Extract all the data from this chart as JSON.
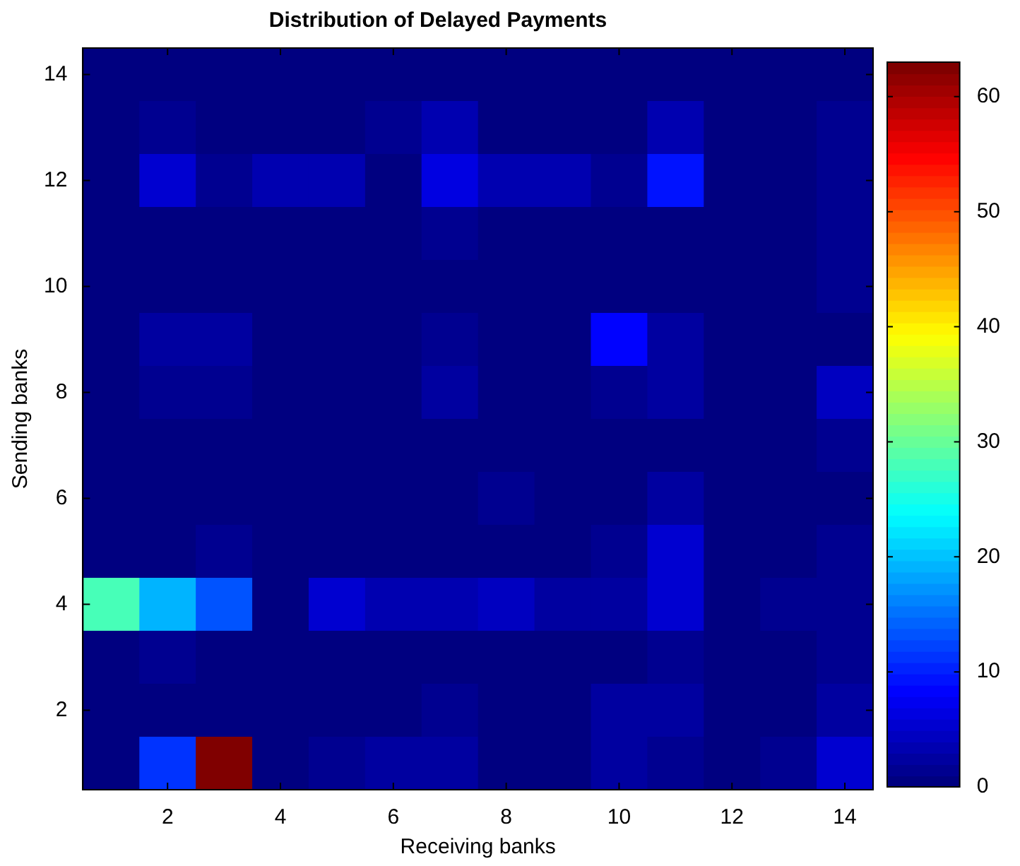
{
  "chart_data": {
    "type": "heatmap",
    "title": "Distribution of Delayed Payments",
    "xlabel": "Receiving banks",
    "ylabel": "Sending banks",
    "categories": [
      null,
      "2",
      null,
      "4",
      null,
      "6",
      null,
      "8",
      null,
      "10",
      null,
      "12",
      null,
      "14"
    ],
    "y_categories": [
      "14",
      null,
      "12",
      null,
      "10",
      null,
      "8",
      null,
      "6",
      null,
      "4",
      null,
      "2",
      null
    ],
    "cells": [
      [
        0,
        0,
        0,
        0,
        0,
        0,
        0,
        0,
        0,
        0,
        0,
        0,
        0,
        0
      ],
      [
        0,
        1,
        0,
        0,
        0,
        1,
        3,
        0,
        0,
        0,
        3,
        0,
        0,
        1
      ],
      [
        0,
        5,
        1,
        3,
        3,
        0,
        6,
        3,
        3,
        1,
        9,
        0,
        0,
        1
      ],
      [
        0,
        0,
        0,
        0,
        0,
        0,
        1,
        0,
        0,
        0,
        0,
        0,
        0,
        1
      ],
      [
        0,
        0,
        0,
        0,
        0,
        0,
        0,
        0,
        0,
        0,
        0,
        0,
        0,
        1
      ],
      [
        0,
        2,
        2,
        0,
        0,
        0,
        1,
        0,
        0,
        8,
        2,
        0,
        0,
        0
      ],
      [
        0,
        1,
        1,
        0,
        0,
        0,
        2,
        0,
        0,
        1,
        2,
        0,
        0,
        4
      ],
      [
        0,
        0,
        0,
        0,
        0,
        0,
        0,
        0,
        0,
        0,
        0,
        0,
        0,
        1
      ],
      [
        0,
        0,
        0,
        0,
        0,
        0,
        0,
        1,
        0,
        0,
        2,
        0,
        0,
        0
      ],
      [
        0,
        0,
        1,
        0,
        0,
        0,
        0,
        0,
        0,
        1,
        5,
        0,
        0,
        1
      ],
      [
        28,
        19,
        13,
        0,
        5,
        3,
        3,
        4,
        2,
        2,
        5,
        0,
        1,
        1
      ],
      [
        0,
        1,
        0,
        0,
        0,
        0,
        0,
        0,
        0,
        0,
        1,
        0,
        0,
        1
      ],
      [
        0,
        0,
        0,
        0,
        0,
        0,
        1,
        0,
        0,
        2,
        2,
        0,
        0,
        2
      ],
      [
        0,
        11,
        63,
        0,
        1,
        2,
        2,
        0,
        0,
        2,
        1,
        0,
        1,
        5
      ]
    ],
    "clim": [
      0,
      63
    ],
    "cticks": [
      0,
      10,
      20,
      30,
      40,
      50,
      60
    ]
  }
}
